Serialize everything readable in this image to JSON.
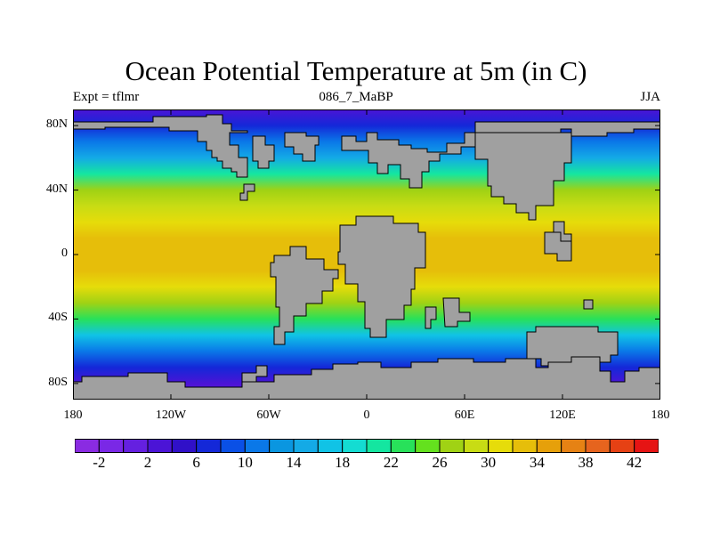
{
  "title": "Ocean Potential Temperature at 5m (in C)",
  "subtitle_left": "Expt = tflmr",
  "subtitle_center": "086_7_MaBP",
  "subtitle_right": "JJA",
  "map": {
    "type": "filled-contour-map",
    "lon_range": [
      -180,
      180
    ],
    "lat_range": [
      -90,
      90
    ],
    "land_color": "#a0a0a0",
    "x_ticks": [
      {
        "lon": -180,
        "label": "180"
      },
      {
        "lon": -120,
        "label": "120W"
      },
      {
        "lon": -60,
        "label": "60W"
      },
      {
        "lon": 0,
        "label": "0"
      },
      {
        "lon": 60,
        "label": "60E"
      },
      {
        "lon": 120,
        "label": "120E"
      },
      {
        "lon": 180,
        "label": "180"
      }
    ],
    "y_ticks": [
      {
        "lat": 80,
        "label": "80N"
      },
      {
        "lat": 40,
        "label": "40N"
      },
      {
        "lat": 0,
        "label": "0"
      },
      {
        "lat": -40,
        "label": "40S"
      },
      {
        "lat": -80,
        "label": "80S"
      }
    ],
    "sst_profile_by_lat": [
      [
        90,
        3
      ],
      [
        80,
        6
      ],
      [
        70,
        10
      ],
      [
        60,
        15
      ],
      [
        50,
        20
      ],
      [
        40,
        26
      ],
      [
        30,
        29
      ],
      [
        20,
        31
      ],
      [
        10,
        33
      ],
      [
        0,
        33
      ],
      [
        -10,
        32
      ],
      [
        -20,
        31
      ],
      [
        -30,
        27
      ],
      [
        -40,
        22
      ],
      [
        -50,
        16
      ],
      [
        -60,
        11
      ],
      [
        -70,
        7
      ],
      [
        -80,
        3
      ],
      [
        -90,
        0
      ]
    ],
    "land_mass_names": [
      "North America",
      "Greenland",
      "Eurasia",
      "Africa",
      "South America",
      "Australia",
      "Antarctica"
    ]
  },
  "colorbar": {
    "colors": [
      "#8a2be2",
      "#7a28e6",
      "#6520e0",
      "#4b14d6",
      "#3010c8",
      "#1428d8",
      "#0a50e6",
      "#0a78e8",
      "#0a96e0",
      "#14aae6",
      "#10c3e6",
      "#14dcd2",
      "#14e6a0",
      "#28e15a",
      "#64e11e",
      "#a0d214",
      "#c8dc14",
      "#e6dc0a",
      "#e6be0a",
      "#e6a00a",
      "#e68214",
      "#e6641e",
      "#e64114",
      "#e61414"
    ],
    "labels": [
      {
        "index": 1,
        "text": "-2"
      },
      {
        "index": 3,
        "text": "2"
      },
      {
        "index": 5,
        "text": "6"
      },
      {
        "index": 7,
        "text": "10"
      },
      {
        "index": 9,
        "text": "14"
      },
      {
        "index": 11,
        "text": "18"
      },
      {
        "index": 13,
        "text": "22"
      },
      {
        "index": 15,
        "text": "26"
      },
      {
        "index": 17,
        "text": "30"
      },
      {
        "index": 19,
        "text": "34"
      },
      {
        "index": 21,
        "text": "38"
      },
      {
        "index": 23,
        "text": "42"
      }
    ]
  }
}
